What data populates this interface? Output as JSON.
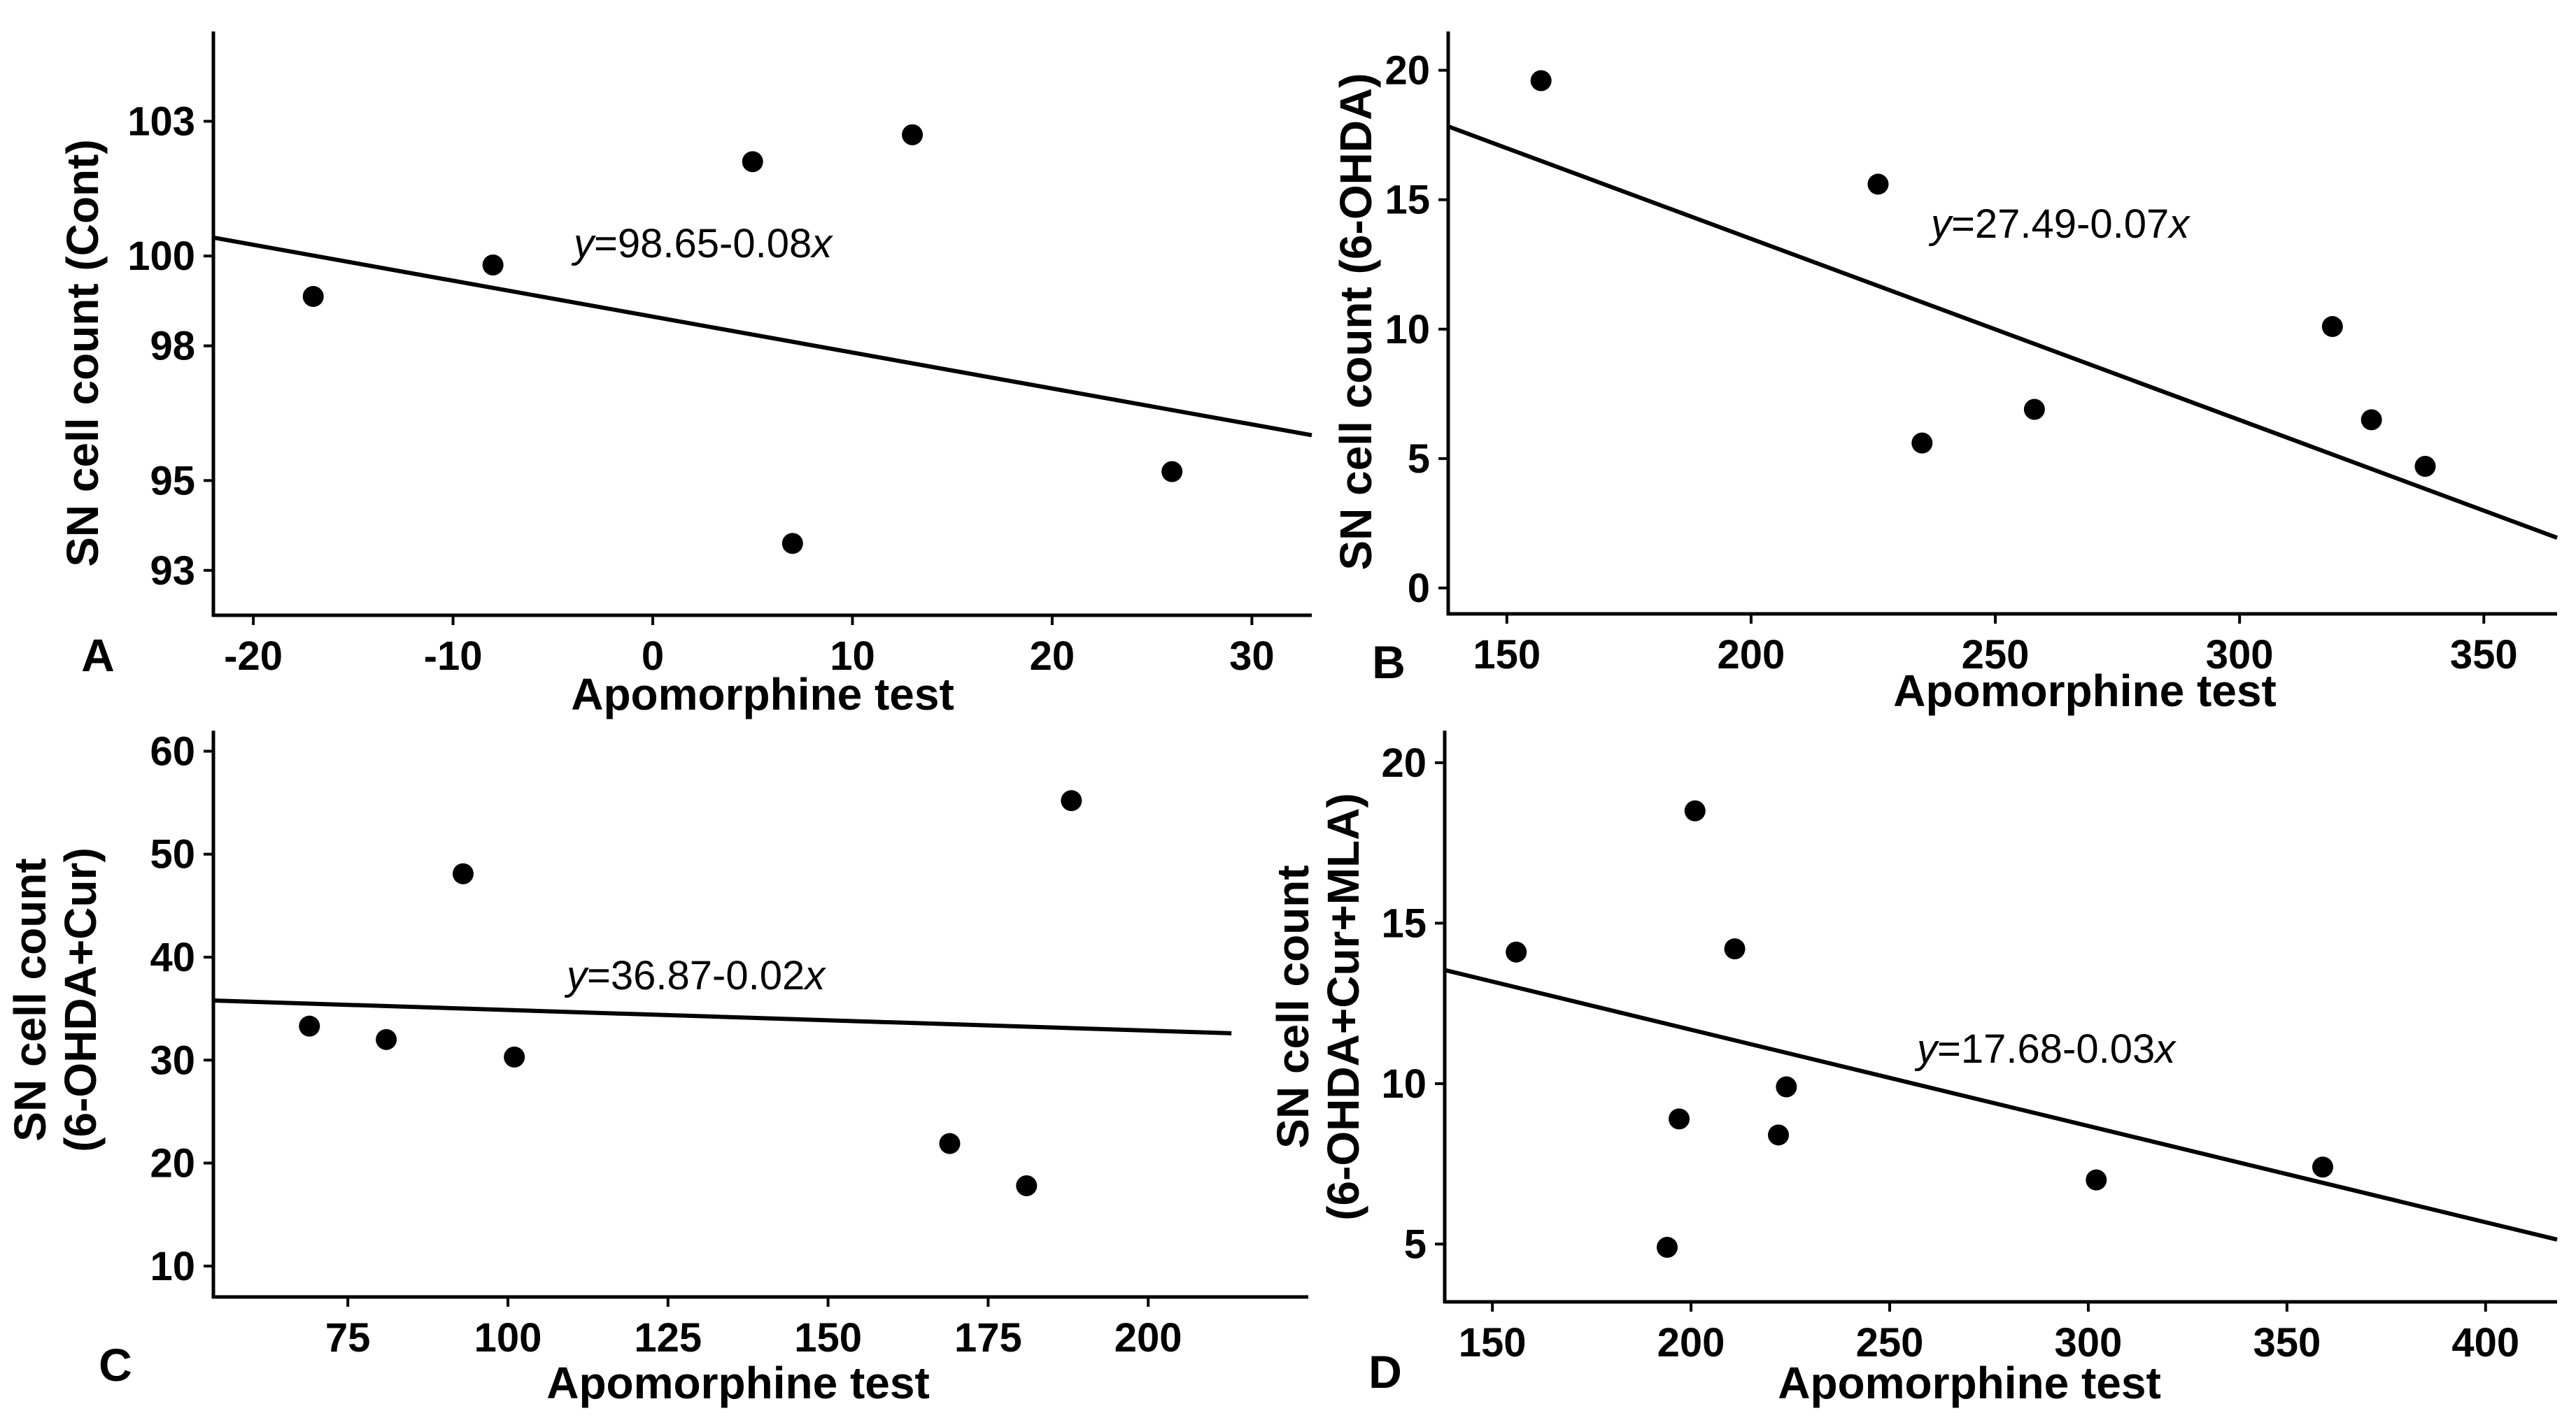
{
  "chart_data": [
    {
      "panel": "A",
      "type": "scatter",
      "xlabel": "Apomorphine test",
      "ylabel": "SN cell count (Cont)",
      "xlim": [
        -22,
        33
      ],
      "ylim": [
        92.0,
        105.0
      ],
      "xticks": [
        -20,
        -10,
        0,
        10,
        20,
        30
      ],
      "yticks": [
        93,
        95,
        98,
        100,
        103
      ],
      "ytick_labels": [
        "93",
        "95",
        "98",
        "100",
        "103"
      ],
      "points": [
        {
          "x": -17,
          "y": 99.1
        },
        {
          "x": -8,
          "y": 99.8
        },
        {
          "x": 5,
          "y": 102.1
        },
        {
          "x": 7,
          "y": 93.6
        },
        {
          "x": 13,
          "y": 102.7
        },
        {
          "x": 26,
          "y": 95.2
        }
      ],
      "fit": {
        "intercept": 98.65,
        "slope": -0.08
      },
      "equation": {
        "y_var": "y",
        "expr": "=98.65-0.08",
        "x_var": "x"
      }
    },
    {
      "panel": "B",
      "type": "scatter",
      "xlabel": "Apomorphine test",
      "ylabel": "SN cell count (6-OHDA)",
      "xlim": [
        138,
        365
      ],
      "ylim": [
        -1,
        21.5
      ],
      "xticks": [
        150,
        200,
        250,
        300,
        350
      ],
      "yticks": [
        0,
        5,
        10,
        15,
        20
      ],
      "ytick_labels": [
        "0",
        "5",
        "10",
        "15",
        "20"
      ],
      "points": [
        {
          "x": 157,
          "y": 19.6
        },
        {
          "x": 226,
          "y": 15.6
        },
        {
          "x": 235,
          "y": 5.6
        },
        {
          "x": 258,
          "y": 6.9
        },
        {
          "x": 319,
          "y": 10.1
        },
        {
          "x": 327,
          "y": 6.5
        },
        {
          "x": 338,
          "y": 4.7
        }
      ],
      "fit": {
        "intercept": 27.49,
        "slope": -0.07
      },
      "equation": {
        "y_var": "y",
        "expr": "=27.49-0.07",
        "x_var": "x"
      }
    },
    {
      "panel": "C",
      "type": "scatter",
      "xlabel": "Apomorphine test",
      "ylabel_lines": [
        "SN cell count",
        "(6-OHDA+Cur)"
      ],
      "xlim": [
        54,
        225
      ],
      "ylim": [
        7,
        62
      ],
      "xticks": [
        75,
        100,
        125,
        150,
        175,
        200
      ],
      "yticks": [
        10,
        20,
        30,
        40,
        50,
        60
      ],
      "ytick_labels": [
        "10",
        "20",
        "30",
        "40",
        "50",
        "60"
      ],
      "points": [
        {
          "x": 69,
          "y": 33.3
        },
        {
          "x": 81,
          "y": 32.0
        },
        {
          "x": 93,
          "y": 48.1
        },
        {
          "x": 101,
          "y": 30.3
        },
        {
          "x": 169,
          "y": 21.9
        },
        {
          "x": 181,
          "y": 17.8
        },
        {
          "x": 188,
          "y": 55.2
        }
      ],
      "fit": {
        "intercept": 36.87,
        "slope": -0.02,
        "x_end": 213
      },
      "equation": {
        "y_var": "y",
        "expr": "=36.87-0.02",
        "x_var": "x"
      }
    },
    {
      "panel": "D",
      "type": "scatter",
      "xlabel": "Apomorphine test",
      "ylabel_lines": [
        "SN cell count",
        "(6-OHDA+Cur+MLA)"
      ],
      "xlim": [
        138,
        418
      ],
      "ylim": [
        3.2,
        21.0
      ],
      "xticks": [
        150,
        200,
        250,
        300,
        350,
        400
      ],
      "yticks": [
        5,
        10,
        15,
        20
      ],
      "ytick_labels": [
        "5",
        "10",
        "15",
        "20"
      ],
      "points": [
        {
          "x": 156,
          "y": 14.1
        },
        {
          "x": 194,
          "y": 4.9
        },
        {
          "x": 197,
          "y": 8.9
        },
        {
          "x": 201,
          "y": 18.5
        },
        {
          "x": 211,
          "y": 14.2
        },
        {
          "x": 222,
          "y": 8.4
        },
        {
          "x": 224,
          "y": 9.9
        },
        {
          "x": 302,
          "y": 7.0
        },
        {
          "x": 359,
          "y": 7.4
        }
      ],
      "fit": {
        "intercept": 17.68,
        "slope": -0.03
      },
      "equation": {
        "y_var": "y",
        "expr": "=17.68-0.03",
        "x_var": "x"
      }
    }
  ]
}
